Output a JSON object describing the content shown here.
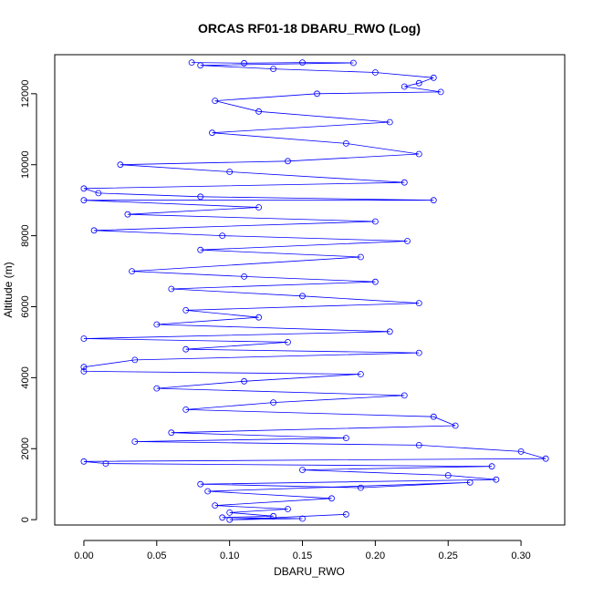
{
  "chart_data": {
    "type": "scatter",
    "title": "ORCAS RF01-18 DBARU_RWO (Log)",
    "xlabel": "DBARU_RWO",
    "ylabel": "Altitude (m)",
    "xlim": [
      -0.02,
      0.33
    ],
    "ylim": [
      -150,
      13100
    ],
    "x_ticks": [
      {
        "value": 0.0,
        "label": "0.00"
      },
      {
        "value": 0.05,
        "label": "0.05"
      },
      {
        "value": 0.1,
        "label": "0.10"
      },
      {
        "value": 0.15,
        "label": "0.15"
      },
      {
        "value": 0.2,
        "label": "0.20"
      },
      {
        "value": 0.25,
        "label": "0.25"
      },
      {
        "value": 0.3,
        "label": "0.30"
      }
    ],
    "y_ticks": [
      {
        "value": 0,
        "label": "0"
      },
      {
        "value": 2000,
        "label": "2000"
      },
      {
        "value": 4000,
        "label": "4000"
      },
      {
        "value": 6000,
        "label": "6000"
      },
      {
        "value": 8000,
        "label": "8000"
      },
      {
        "value": 10000,
        "label": "10000"
      },
      {
        "value": 12000,
        "label": "12000"
      }
    ],
    "grid": false,
    "legend": "none",
    "series": [
      {
        "color": "#0000ff",
        "marker": "open-circle",
        "connected": true,
        "points": [
          [
            0.074,
            12880
          ],
          [
            0.11,
            12860
          ],
          [
            0.15,
            12880
          ],
          [
            0.185,
            12870
          ],
          [
            0.08,
            12800
          ],
          [
            0.13,
            12700
          ],
          [
            0.2,
            12600
          ],
          [
            0.24,
            12450
          ],
          [
            0.23,
            12300
          ],
          [
            0.22,
            12200
          ],
          [
            0.245,
            12050
          ],
          [
            0.16,
            12000
          ],
          [
            0.09,
            11800
          ],
          [
            0.12,
            11500
          ],
          [
            0.21,
            11200
          ],
          [
            0.088,
            10900
          ],
          [
            0.18,
            10600
          ],
          [
            0.23,
            10300
          ],
          [
            0.14,
            10100
          ],
          [
            0.025,
            10000
          ],
          [
            0.1,
            9800
          ],
          [
            0.22,
            9500
          ],
          [
            0.0,
            9330
          ],
          [
            0.01,
            9200
          ],
          [
            0.08,
            9100
          ],
          [
            0.24,
            9000
          ],
          [
            0.0,
            9000
          ],
          [
            0.12,
            8800
          ],
          [
            0.03,
            8600
          ],
          [
            0.2,
            8400
          ],
          [
            0.007,
            8150
          ],
          [
            0.095,
            8000
          ],
          [
            0.222,
            7850
          ],
          [
            0.08,
            7600
          ],
          [
            0.19,
            7400
          ],
          [
            0.033,
            7000
          ],
          [
            0.11,
            6850
          ],
          [
            0.2,
            6700
          ],
          [
            0.06,
            6500
          ],
          [
            0.15,
            6300
          ],
          [
            0.23,
            6100
          ],
          [
            0.07,
            5900
          ],
          [
            0.12,
            5700
          ],
          [
            0.05,
            5500
          ],
          [
            0.21,
            5300
          ],
          [
            0.0,
            5100
          ],
          [
            0.14,
            5000
          ],
          [
            0.07,
            4800
          ],
          [
            0.23,
            4700
          ],
          [
            0.035,
            4500
          ],
          [
            0.0,
            4300
          ],
          [
            0.0,
            4180
          ],
          [
            0.19,
            4100
          ],
          [
            0.11,
            3900
          ],
          [
            0.05,
            3700
          ],
          [
            0.22,
            3500
          ],
          [
            0.13,
            3300
          ],
          [
            0.07,
            3100
          ],
          [
            0.24,
            2900
          ],
          [
            0.255,
            2650
          ],
          [
            0.06,
            2450
          ],
          [
            0.18,
            2300
          ],
          [
            0.035,
            2200
          ],
          [
            0.23,
            2100
          ],
          [
            0.3,
            1920
          ],
          [
            0.317,
            1720
          ],
          [
            0.0,
            1640
          ],
          [
            0.015,
            1580
          ],
          [
            0.28,
            1500
          ],
          [
            0.15,
            1400
          ],
          [
            0.25,
            1250
          ],
          [
            0.283,
            1130
          ],
          [
            0.08,
            1000
          ],
          [
            0.19,
            900
          ],
          [
            0.265,
            1050
          ],
          [
            0.085,
            800
          ],
          [
            0.17,
            600
          ],
          [
            0.09,
            400
          ],
          [
            0.14,
            300
          ],
          [
            0.1,
            200
          ],
          [
            0.13,
            100
          ],
          [
            0.095,
            60
          ],
          [
            0.15,
            30
          ],
          [
            0.1,
            0
          ],
          [
            0.18,
            150
          ]
        ]
      }
    ]
  }
}
